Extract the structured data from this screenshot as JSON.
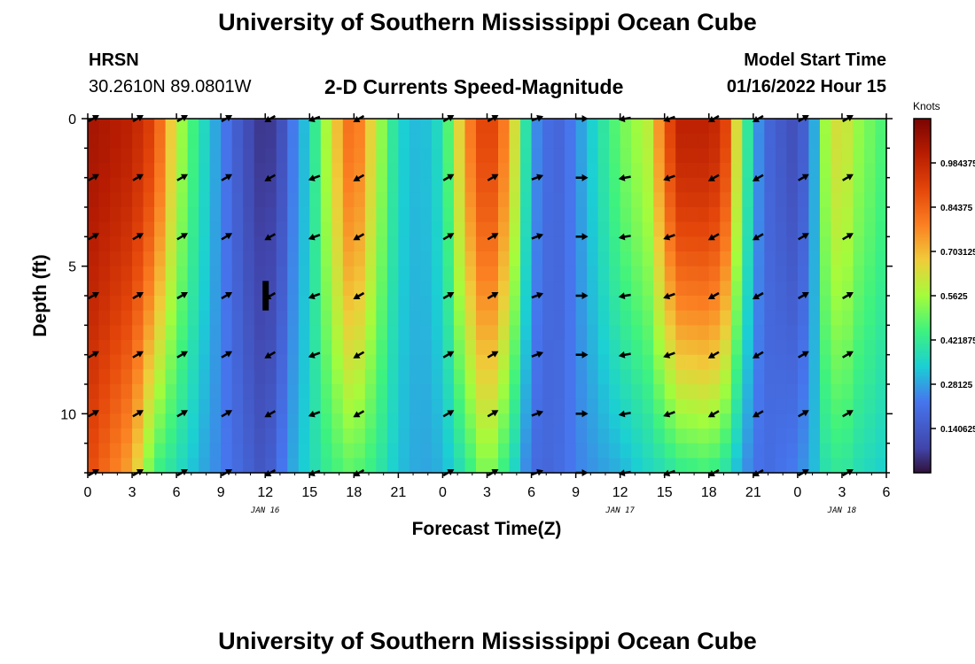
{
  "header": {
    "title": "University of Southern Mississippi Ocean Cube",
    "station": "HRSN",
    "coords": "30.2610N  89.0801W",
    "subtitle": "2-D Currents Speed-Magnitude",
    "model_start_label": "Model Start Time",
    "model_start_value": "01/16/2022 Hour 15"
  },
  "footer": {
    "title": "University of Southern Mississippi Ocean Cube"
  },
  "chart_data": {
    "type": "heatmap",
    "title": "2-D Currents Speed-Magnitude",
    "xlabel": "Forecast Time(Z)",
    "ylabel": "Depth (ft)",
    "x_range_hours": [
      0,
      54
    ],
    "y_range_ft": [
      0,
      12
    ],
    "x_tick_labels": [
      "0",
      "3",
      "6",
      "9",
      "12",
      "15",
      "18",
      "21",
      "0",
      "3",
      "6",
      "9",
      "12",
      "15",
      "18",
      "21",
      "0",
      "3",
      "6"
    ],
    "y_ticks": [
      0,
      5,
      10
    ],
    "date_labels": [
      {
        "text": "JAN 16",
        "hour": 12
      },
      {
        "text": "JAN 17",
        "hour": 36
      },
      {
        "text": "JAN 18",
        "hour": 51
      }
    ],
    "colorbar": {
      "units": "Knots",
      "min": 0,
      "max": 1.125,
      "tick_values": [
        0.140625,
        0.28125,
        0.421875,
        0.5625,
        0.703125,
        0.84375,
        0.984375
      ],
      "tick_labels": [
        "0.140625",
        "0.28125",
        "0.421875",
        "0.5625",
        "0.703125",
        "0.84375",
        "0.984375"
      ]
    },
    "speed_profile_hours": [
      0,
      3,
      4.5,
      6,
      7.5,
      9,
      10.5,
      12,
      13,
      14,
      15,
      16,
      17.5,
      18,
      19.5,
      21,
      22.5,
      24,
      25.5,
      27,
      28.5,
      30,
      31,
      32,
      33,
      36,
      38,
      39,
      40,
      42,
      43,
      44,
      45,
      46,
      48,
      49,
      50,
      51,
      52,
      54
    ],
    "speed_surface_knots": [
      1.05,
      1.0,
      0.9,
      0.6,
      0.4,
      0.25,
      0.12,
      0.04,
      0.1,
      0.25,
      0.35,
      0.55,
      0.8,
      0.85,
      0.6,
      0.35,
      0.3,
      0.38,
      0.75,
      0.95,
      0.75,
      0.28,
      0.2,
      0.18,
      0.25,
      0.5,
      0.6,
      0.85,
      1.0,
      1.0,
      0.95,
      0.6,
      0.3,
      0.18,
      0.1,
      0.25,
      0.6,
      0.65,
      0.55,
      0.45
    ],
    "speed_bottom_knots": [
      0.9,
      0.72,
      0.45,
      0.38,
      0.3,
      0.24,
      0.18,
      0.12,
      0.22,
      0.3,
      0.36,
      0.42,
      0.48,
      0.48,
      0.42,
      0.32,
      0.28,
      0.3,
      0.4,
      0.55,
      0.4,
      0.2,
      0.18,
      0.2,
      0.24,
      0.3,
      0.36,
      0.38,
      0.42,
      0.45,
      0.4,
      0.3,
      0.22,
      0.2,
      0.24,
      0.3,
      0.4,
      0.42,
      0.38,
      0.34
    ],
    "arrow_depths_ft": [
      0,
      2,
      4,
      6,
      8,
      10,
      12
    ],
    "arrow_hours": [
      0,
      3,
      6,
      9,
      12,
      15,
      18,
      24,
      27,
      30,
      33,
      36,
      39,
      42,
      45,
      48,
      51
    ],
    "arrow_directions_deg": [
      30,
      30,
      30,
      30,
      210,
      200,
      210,
      30,
      30,
      20,
      0,
      190,
      200,
      210,
      210,
      30,
      30
    ],
    "gap_marker": {
      "hour": 12,
      "depth_from_ft": 5.5,
      "depth_to_ft": 6.5
    }
  }
}
